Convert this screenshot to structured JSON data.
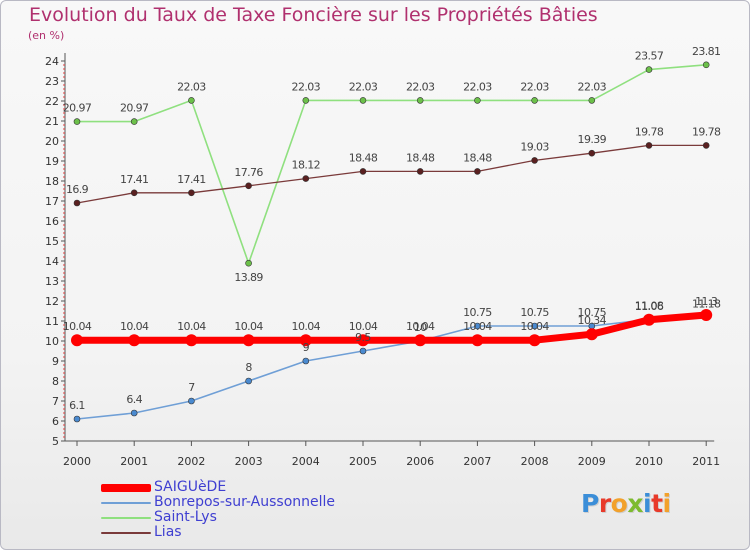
{
  "chart_data": {
    "type": "line",
    "title": "Evolution du Taux de Taxe Foncière sur les Propriétés Bâties",
    "unit_label": "(en %)",
    "xlabel": "",
    "ylabel": "(en %)",
    "ylim": [
      5,
      24
    ],
    "grid": false,
    "legend_position": "bottom-left",
    "categories": [
      "2000",
      "2001",
      "2002",
      "2003",
      "2004",
      "2005",
      "2006",
      "2007",
      "2008",
      "2009",
      "2010",
      "2011"
    ],
    "y_ticks": [
      "5",
      "6",
      "7",
      "8",
      "9",
      "10",
      "11",
      "12",
      "13",
      "14",
      "15",
      "16",
      "17",
      "18",
      "19",
      "20",
      "21",
      "22",
      "23",
      "24"
    ],
    "series": [
      {
        "name": "SAIGUèDE",
        "color": "#ff0000",
        "values": [
          10.04,
          10.04,
          10.04,
          10.04,
          10.04,
          10.04,
          10.04,
          10.04,
          10.04,
          10.34,
          11.06,
          11.3
        ],
        "labels": [
          "10.04",
          "10.04",
          "10.04",
          "10.04",
          "10.04",
          "10.04",
          "10.04",
          "10.04",
          "10.04",
          "10.34",
          "11.06",
          "11.3"
        ]
      },
      {
        "name": "Bonrepos-sur-Aussonnelle",
        "color": "#6f9fd6",
        "marker_color": "#4a8ad0",
        "values": [
          6.1,
          6.4,
          7,
          8,
          9,
          9.5,
          10,
          10.75,
          10.75,
          10.75,
          11.08,
          11.18
        ],
        "labels": [
          "6.1",
          "6.4",
          "7",
          "8",
          "9",
          "9.5",
          "10",
          "10.75",
          "10.75",
          "10.75",
          "11.08",
          "11.18"
        ]
      },
      {
        "name": "Saint-Lys",
        "color": "#8fe07f",
        "marker_color": "#6cc04a",
        "values": [
          20.97,
          20.97,
          22.03,
          13.89,
          22.03,
          22.03,
          22.03,
          22.03,
          22.03,
          22.03,
          23.57,
          23.81
        ],
        "labels": [
          "20.97",
          "20.97",
          "22.03",
          "13.89",
          "22.03",
          "22.03",
          "22.03",
          "22.03",
          "22.03",
          "22.03",
          "23.57",
          "23.81"
        ]
      },
      {
        "name": "Lias",
        "color": "#7a3a3a",
        "marker_color": "#5a2020",
        "values": [
          16.9,
          17.41,
          17.41,
          17.76,
          18.12,
          18.48,
          18.48,
          18.48,
          19.03,
          19.39,
          19.78,
          19.78
        ],
        "labels": [
          "16.9",
          "17.41",
          "17.41",
          "17.76",
          "18.12",
          "18.48",
          "18.48",
          "18.48",
          "19.03",
          "19.39",
          "19.78",
          "19.78"
        ]
      }
    ]
  },
  "logo": {
    "letters": [
      {
        "char": "P",
        "color": "#3b8ed8"
      },
      {
        "char": "r",
        "color": "#e83a2a"
      },
      {
        "char": "o",
        "color": "#f2a12b"
      },
      {
        "char": "x",
        "color": "#7dbb2f"
      },
      {
        "char": "i",
        "color": "#3b8ed8"
      },
      {
        "char": "t",
        "color": "#e83a2a"
      },
      {
        "char": "i",
        "color": "#f2a12b"
      }
    ]
  }
}
